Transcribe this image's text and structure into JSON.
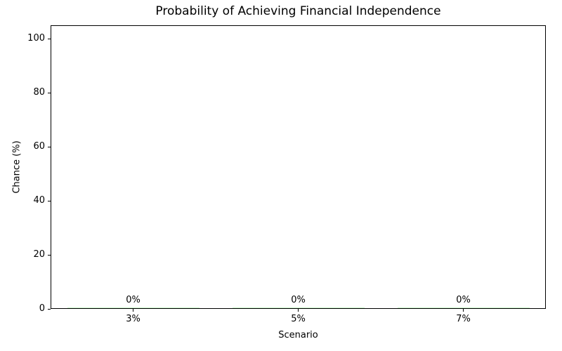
{
  "chart_data": {
    "type": "bar",
    "title": "Probability of Achieving Financial Independence",
    "xlabel": "Scenario",
    "ylabel": "Chance (%)",
    "categories": [
      "3%",
      "5%",
      "7%"
    ],
    "values": [
      0,
      0,
      0
    ],
    "bar_labels": [
      "0%",
      "0%",
      "0%"
    ],
    "yticks": [
      0,
      20,
      40,
      60,
      80,
      100
    ],
    "ylim": [
      0,
      105
    ],
    "bar_width_fraction": 0.8,
    "bar_color": "#90EE90",
    "axis_color": "#000000",
    "text_color": "#000000",
    "background_color": "#ffffff",
    "grid": false,
    "legend_position": "none"
  }
}
